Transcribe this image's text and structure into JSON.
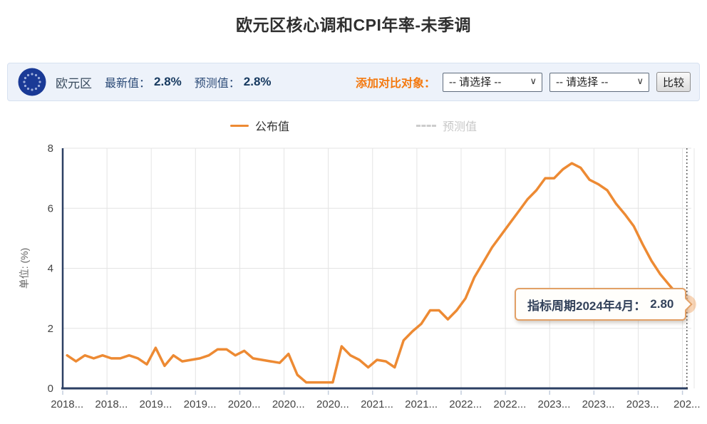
{
  "page": {
    "title": "欧元区核心调和CPI年率-未季调"
  },
  "header": {
    "flag_icon": "eu-flag-icon",
    "region": "欧元区",
    "latest_label": "最新值：",
    "latest_value": "2.8%",
    "forecast_label": "预测值：",
    "forecast_value": "2.8%",
    "compare_label": "添加对比对象：",
    "select1_value": "-- 请选择 --",
    "select2_value": "-- 请选择 --",
    "compare_button": "比较"
  },
  "legend": {
    "published": "公布值",
    "forecast": "预测值"
  },
  "tooltip": {
    "label": "指标周期2024年4月：",
    "value": "2.80"
  },
  "colors": {
    "line": "#ED8A33",
    "halo": "rgba(237,138,51,0.35)",
    "axis": "#2B3F63",
    "grid": "#E4E4E4",
    "tick": "#C3CDDD",
    "axis_label": "#444444",
    "ylabel_color": "#666666",
    "marker_line": "#444444"
  },
  "chart_data": {
    "type": "line",
    "title": "欧元区核心调和CPI年率-未季调",
    "xlabel": "",
    "ylabel": "单位: (%)",
    "ylim": [
      0,
      8
    ],
    "yticks": [
      0,
      2,
      4,
      6,
      8
    ],
    "grid": true,
    "legend_position": "top",
    "x_label_every": 5,
    "x_tick_labels": [
      "2018...",
      "2018...",
      "2019...",
      "2019...",
      "2020...",
      "2020...",
      "2020...",
      "2021...",
      "2021...",
      "2022...",
      "2022...",
      "2023...",
      "2023...",
      "2023...",
      "202..."
    ],
    "x": [
      "2018年06月",
      "2018年07月",
      "2018年08月",
      "2018年09月",
      "2018年10月",
      "2018年11月",
      "2018年12月",
      "2019年01月",
      "2019年02月",
      "2019年03月",
      "2019年04月",
      "2019年05月",
      "2019年06月",
      "2019年07月",
      "2019年08月",
      "2019年09月",
      "2019年10月",
      "2019年11月",
      "2019年12月",
      "2020年01月",
      "2020年02月",
      "2020年03月",
      "2020年04月",
      "2020年05月",
      "2020年06月",
      "2020年07月",
      "2020年08月",
      "2020年09月",
      "2020年10月",
      "2020年11月",
      "2020年12月",
      "2021年01月",
      "2021年02月",
      "2021年03月",
      "2021年04月",
      "2021年05月",
      "2021年06月",
      "2021年07月",
      "2021年08月",
      "2021年09月",
      "2021年10月",
      "2021年11月",
      "2021年12月",
      "2022年01月",
      "2022年02月",
      "2022年03月",
      "2022年04月",
      "2022年05月",
      "2022年06月",
      "2022年07月",
      "2022年08月",
      "2022年09月",
      "2022年10月",
      "2022年11月",
      "2022年12月",
      "2023年01月",
      "2023年02月",
      "2023年03月",
      "2023年04月",
      "2023年05月",
      "2023年06月",
      "2023年07月",
      "2023年08月",
      "2023年09月",
      "2023年10月",
      "2023年11月",
      "2023年12月",
      "2024年01月",
      "2024年02月",
      "2024年03月",
      "2024年04月"
    ],
    "series": [
      {
        "name": "公布值",
        "color": "#ED8A33",
        "values": [
          1.1,
          0.9,
          1.1,
          1.0,
          1.1,
          1.0,
          1.0,
          1.1,
          1.0,
          0.8,
          1.35,
          0.75,
          1.1,
          0.9,
          0.95,
          1.0,
          1.1,
          1.3,
          1.3,
          1.1,
          1.25,
          1.0,
          0.95,
          0.9,
          0.85,
          1.15,
          0.45,
          0.2,
          0.2,
          0.2,
          0.2,
          1.4,
          1.1,
          0.95,
          0.7,
          0.95,
          0.9,
          0.7,
          1.6,
          1.9,
          2.15,
          2.6,
          2.6,
          2.3,
          2.6,
          3.0,
          3.7,
          4.2,
          4.7,
          5.1,
          5.5,
          5.9,
          6.3,
          6.6,
          7.0,
          7.0,
          7.3,
          7.5,
          7.35,
          6.95,
          6.8,
          6.6,
          6.15,
          5.8,
          5.4,
          4.8,
          4.25,
          3.8,
          3.45,
          3.1,
          2.8
        ]
      }
    ],
    "last_point": {
      "x": "2024年04月",
      "value": 2.8
    }
  }
}
